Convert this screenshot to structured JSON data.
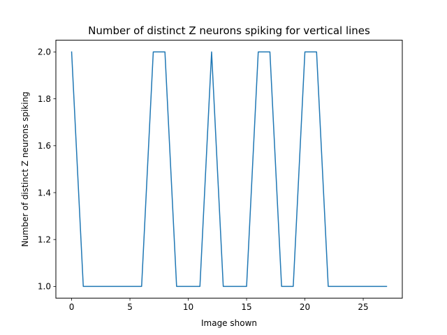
{
  "chart_data": {
    "type": "line",
    "title": "Number of distinct Z neurons spiking for vertical lines",
    "xlabel": "Image shown",
    "ylabel": "Number of distinct Z neurons spiking",
    "xlim": [
      -1.35,
      28.35
    ],
    "ylim": [
      0.95,
      2.05
    ],
    "xticks": [
      0,
      5,
      10,
      15,
      20,
      25
    ],
    "yticks": [
      1.0,
      1.2,
      1.4,
      1.6,
      1.8,
      2.0
    ],
    "ytick_labels": [
      "1.0",
      "1.2",
      "1.4",
      "1.6",
      "1.8",
      "2.0"
    ],
    "grid": false,
    "series": [
      {
        "color": "#1f77b4",
        "x": [
          0,
          1,
          2,
          3,
          4,
          5,
          6,
          7,
          8,
          9,
          10,
          11,
          12,
          13,
          14,
          15,
          16,
          17,
          18,
          19,
          20,
          21,
          22,
          23,
          24,
          25,
          26,
          27
        ],
        "y": [
          2,
          1,
          1,
          1,
          1,
          1,
          1,
          2,
          2,
          1,
          1,
          1,
          2,
          1,
          1,
          1,
          2,
          2,
          1,
          1,
          2,
          2,
          1,
          1,
          1,
          1,
          1,
          1
        ]
      }
    ]
  }
}
